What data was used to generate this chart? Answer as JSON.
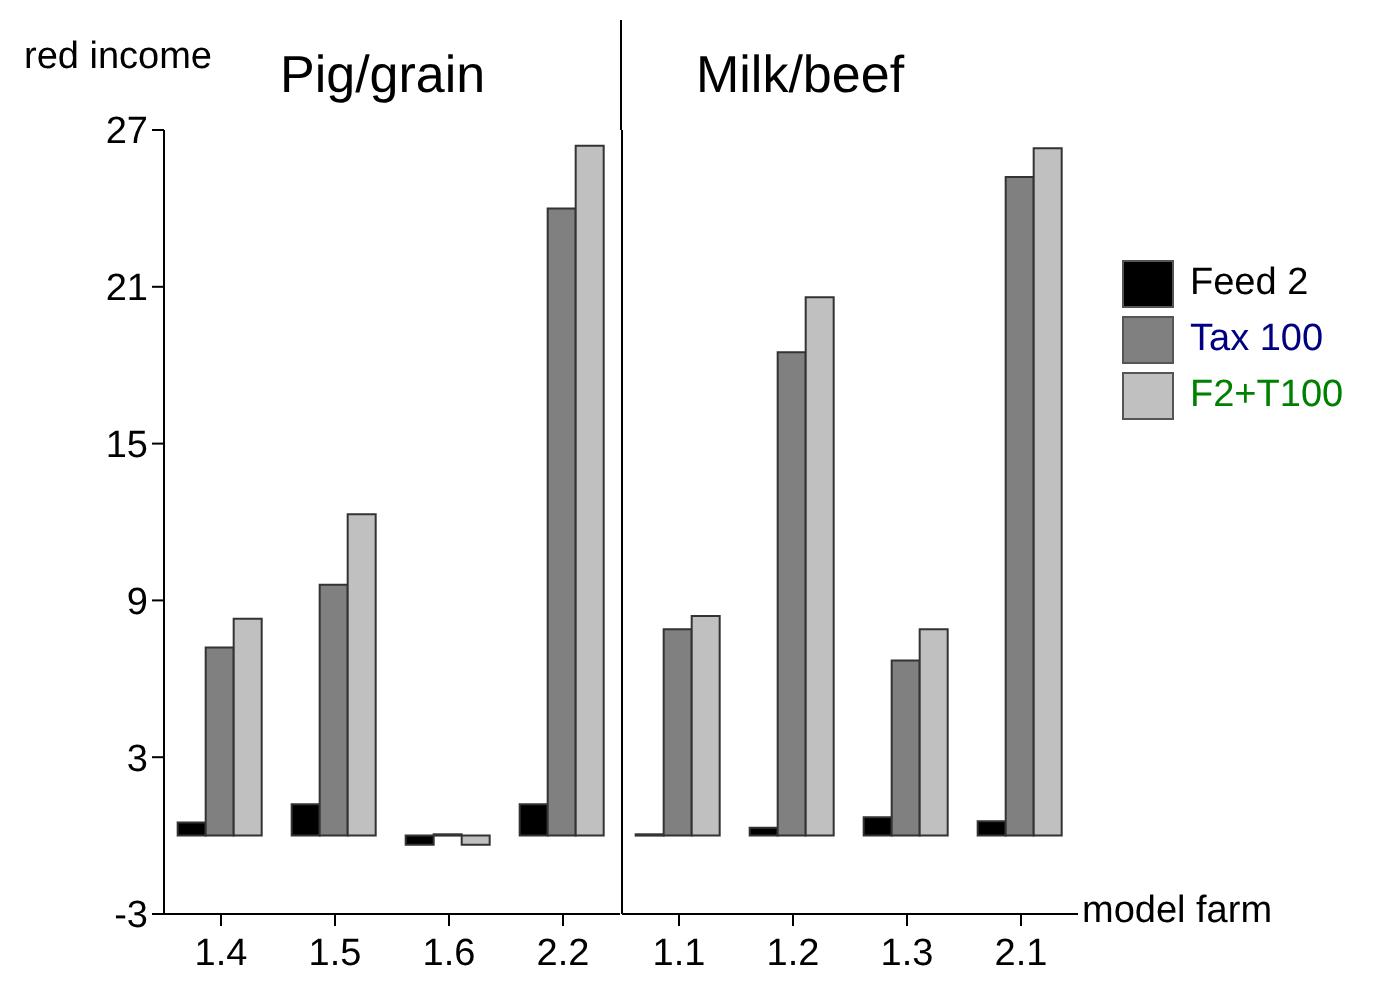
{
  "chart_data": [
    {
      "type": "bar",
      "title": "Pig/grain",
      "ylabel": "red income",
      "categories": [
        "1.4",
        "1.5",
        "1.6",
        "2.2"
      ],
      "series": [
        {
          "color": "#000000",
          "values": [
            0.5,
            1.2,
            -0.35,
            1.2
          ]
        },
        {
          "color": "#808080",
          "values": [
            7.2,
            9.6,
            0.05,
            24.0
          ]
        },
        {
          "color": "#c0c0c0",
          "values": [
            8.3,
            12.3,
            -0.35,
            26.4
          ]
        }
      ],
      "ylim": [
        -3,
        27
      ],
      "yticks": [
        -3,
        3,
        9,
        15,
        21,
        27
      ]
    },
    {
      "type": "bar",
      "title": "Milk/beef",
      "xlabel": "model farm",
      "categories": [
        "1.1",
        "1.2",
        "1.3",
        "2.1"
      ],
      "series": [
        {
          "name": "Feed 2",
          "color": "#000000",
          "values": [
            0.05,
            0.3,
            0.7,
            0.55
          ]
        },
        {
          "name": "Tax 100",
          "color": "#808080",
          "values": [
            7.9,
            18.5,
            6.7,
            25.2
          ]
        },
        {
          "name": "F2+T100",
          "color": "#c0c0c0",
          "values": [
            8.4,
            20.6,
            7.9,
            26.3
          ]
        }
      ],
      "ylim": [
        -3,
        27
      ],
      "yticks": [
        -3,
        3,
        9,
        15,
        21,
        27
      ],
      "tick_labels": "x",
      "legend": "right"
    }
  ]
}
